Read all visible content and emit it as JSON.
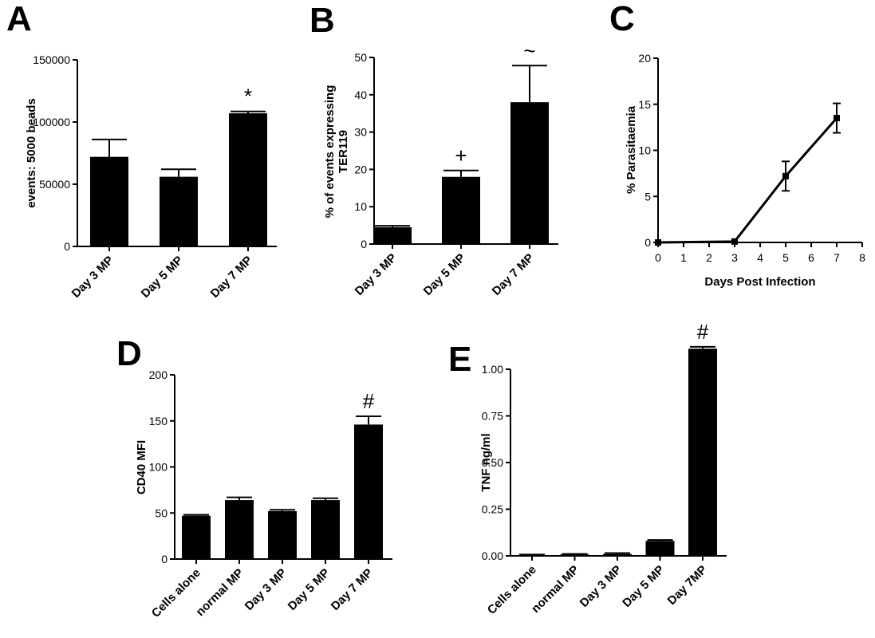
{
  "chart_data": [
    {
      "panel": "A",
      "type": "bar",
      "categories": [
        "Day 3 MP",
        "Day 5 MP",
        "Day 7 MP"
      ],
      "values": [
        72000,
        56000,
        107000
      ],
      "errors": [
        14000,
        6000,
        1500
      ],
      "annotations": [
        "",
        "",
        "*"
      ],
      "ylabel": "events: 5000 beads",
      "ylim": [
        0,
        150000
      ],
      "yticks": [
        "0",
        "50000",
        "100000",
        "150000"
      ],
      "ytick_values": [
        0,
        50000,
        100000,
        150000
      ]
    },
    {
      "panel": "B",
      "type": "bar",
      "categories": [
        "Day 3 MP",
        "Day 5 MP",
        "Day 7 MP"
      ],
      "values": [
        4.5,
        18,
        38
      ],
      "errors": [
        0.4,
        1.7,
        9.8
      ],
      "annotations": [
        "",
        "+",
        "~"
      ],
      "ylabel": "% of events expressing TER119",
      "ylabel_lines": [
        "% of events expressing",
        "TER119"
      ],
      "ylim": [
        0,
        50
      ],
      "yticks": [
        "0",
        "10",
        "20",
        "30",
        "40",
        "50"
      ],
      "ytick_values": [
        0,
        10,
        20,
        30,
        40,
        50
      ]
    },
    {
      "panel": "C",
      "type": "line",
      "x": [
        0,
        3,
        5,
        7
      ],
      "y": [
        0,
        0.1,
        7.2,
        13.5
      ],
      "errors": [
        0,
        0,
        1.6,
        1.6
      ],
      "xlabel": "Days Post Infection",
      "ylabel": "% Parasitaemia",
      "xlim": [
        0,
        8
      ],
      "ylim": [
        0,
        20
      ],
      "xticks": [
        "0",
        "1",
        "2",
        "3",
        "4",
        "5",
        "6",
        "7",
        "8"
      ],
      "xtick_values": [
        0,
        1,
        2,
        3,
        4,
        5,
        6,
        7,
        8
      ],
      "yticks": [
        "0",
        "5",
        "10",
        "15",
        "20"
      ],
      "ytick_values": [
        0,
        5,
        10,
        15,
        20
      ]
    },
    {
      "panel": "D",
      "type": "bar",
      "categories": [
        "Cells alone",
        "normal MP",
        "Day 3 MP",
        "Day 5 MP",
        "Day 7 MP"
      ],
      "values": [
        47,
        64,
        52,
        64,
        146
      ],
      "errors": [
        1,
        3,
        1.5,
        2,
        9
      ],
      "annotations": [
        "",
        "",
        "",
        "",
        "#"
      ],
      "ylabel": "CD40 MFI",
      "ylim": [
        0,
        200
      ],
      "yticks": [
        "0",
        "50",
        "100",
        "150",
        "200"
      ],
      "ytick_values": [
        0,
        50,
        100,
        150,
        200
      ]
    },
    {
      "panel": "E",
      "type": "bar",
      "categories": [
        "Cells alone",
        "normal MP",
        "Day 3 MP",
        "Day 5 MP",
        "Day 7MP"
      ],
      "values": [
        0.005,
        0.008,
        0.01,
        0.08,
        1.11
      ],
      "errors": [
        0.002,
        0.002,
        0.005,
        0.005,
        0.01
      ],
      "annotations": [
        "",
        "",
        "",
        "",
        "#"
      ],
      "ylabel": "TNF ng/ml",
      "ylim": [
        0,
        1.2
      ],
      "yticks": [
        "0.00",
        "0.25",
        "0.50",
        "0.75",
        "1.00"
      ],
      "ytick_values": [
        0,
        0.25,
        0.5,
        0.75,
        1.0
      ]
    }
  ]
}
